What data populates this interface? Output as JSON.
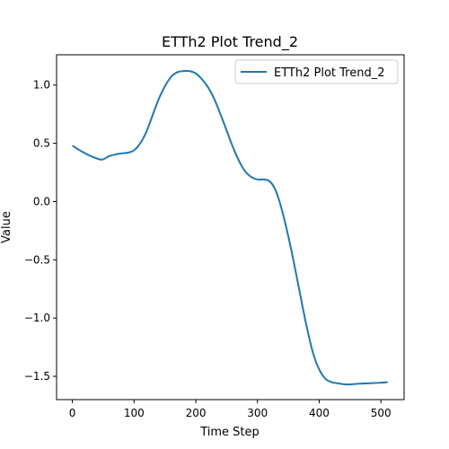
{
  "chart_data": {
    "type": "line",
    "title": "ETTh2 Plot Trend_2",
    "xlabel": "Time Step",
    "ylabel": "Value",
    "xlim": [
      -25.6,
      537.6
    ],
    "ylim": [
      -1.7,
      1.26
    ],
    "xticks": [
      0,
      100,
      200,
      300,
      400,
      500
    ],
    "xtick_labels": [
      "0",
      "100",
      "200",
      "300",
      "400",
      "500"
    ],
    "yticks": [
      -1.5,
      -1.0,
      -0.5,
      0.0,
      0.5,
      1.0
    ],
    "ytick_labels": [
      "−1.5",
      "−1.0",
      "−0.5",
      "0.0",
      "0.5",
      "1.0"
    ],
    "grid": false,
    "legend_position": "top-right",
    "series": [
      {
        "name": "ETTh2 Plot Trend_2",
        "color": "#1f77b4",
        "x": [
          0,
          15,
          30,
          47,
          60,
          75,
          90,
          100,
          110,
          120,
          130,
          140,
          150,
          160,
          170,
          180,
          190,
          200,
          210,
          220,
          230,
          240,
          250,
          260,
          270,
          280,
          290,
          300,
          310,
          318,
          325,
          332,
          340,
          350,
          360,
          370,
          380,
          390,
          400,
          410,
          420,
          430,
          445,
          460,
          480,
          500,
          511
        ],
        "y": [
          0.48,
          0.43,
          0.39,
          0.36,
          0.39,
          0.41,
          0.42,
          0.44,
          0.5,
          0.6,
          0.74,
          0.88,
          0.99,
          1.07,
          1.11,
          1.12,
          1.12,
          1.1,
          1.05,
          0.98,
          0.88,
          0.75,
          0.61,
          0.47,
          0.35,
          0.26,
          0.21,
          0.19,
          0.19,
          0.18,
          0.14,
          0.06,
          -0.08,
          -0.3,
          -0.55,
          -0.82,
          -1.08,
          -1.3,
          -1.44,
          -1.52,
          -1.55,
          -1.56,
          -1.57,
          -1.565,
          -1.56,
          -1.555,
          -1.55
        ]
      }
    ]
  }
}
